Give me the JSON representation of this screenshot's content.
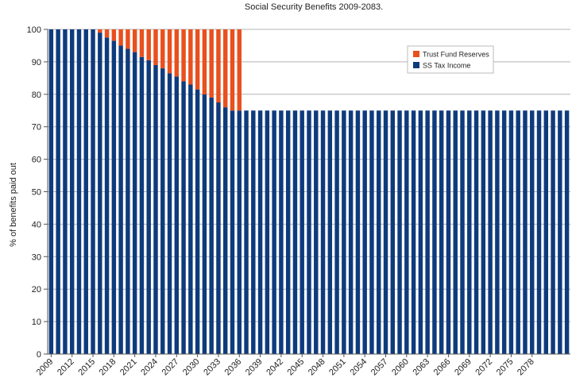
{
  "colors": {
    "ss_tax_income": "#0e3b7c",
    "trust_fund_reserves": "#e8501e",
    "grid": "#b3b3b3",
    "axis": "#555555",
    "background": "#ffffff"
  },
  "chart_data": {
    "type": "bar",
    "stacked": true,
    "title": "Social Security Benefits 2009-2083.",
    "xlabel": "",
    "ylabel": "% of benefits paid out",
    "ylim": [
      0,
      100
    ],
    "yticks": [
      0,
      10,
      20,
      30,
      40,
      50,
      60,
      70,
      80,
      90,
      100
    ],
    "grid": "horizontal",
    "legend_position": "top-right",
    "x_start": 2009,
    "x_end": 2083,
    "x_tick_labels": [
      "2009",
      "2012",
      "2015",
      "2018",
      "2021",
      "2024",
      "2027",
      "2030",
      "2033",
      "2036",
      "2039",
      "2042",
      "2045",
      "2048",
      "2051",
      "2054",
      "2057",
      "2060",
      "2063",
      "2066",
      "2069",
      "2072",
      "2075",
      "2078"
    ],
    "legend": [
      "Trust Fund Reserves",
      "SS Tax Income"
    ],
    "series": [
      {
        "name": "SS Tax Income",
        "color": "#0e3b7c",
        "values": [
          100,
          100,
          100,
          100,
          100,
          100,
          100,
          99,
          97.5,
          96.5,
          95,
          94,
          93,
          91.5,
          90.5,
          89,
          88,
          86.5,
          85.5,
          84,
          83,
          81.5,
          80,
          79,
          77.5,
          76,
          75,
          75,
          75,
          75,
          75,
          75,
          75,
          75,
          75,
          75,
          75,
          75,
          75,
          75,
          75,
          75,
          75,
          75,
          75,
          75,
          75,
          75,
          75,
          75,
          75,
          75,
          75,
          75,
          75,
          75,
          75,
          75,
          75,
          75,
          75,
          75,
          75,
          75,
          75,
          75,
          75,
          75,
          75,
          75,
          75,
          75,
          75,
          75,
          75
        ]
      },
      {
        "name": "Trust Fund Reserves",
        "color": "#e8501e",
        "values": [
          0,
          0,
          0,
          0,
          0,
          0,
          0,
          1,
          2.5,
          3.5,
          5,
          6,
          7,
          8.5,
          9.5,
          11,
          12,
          13.5,
          14.5,
          16,
          17,
          18.5,
          20,
          21,
          22.5,
          24,
          25,
          25,
          0,
          0,
          0,
          0,
          0,
          0,
          0,
          0,
          0,
          0,
          0,
          0,
          0,
          0,
          0,
          0,
          0,
          0,
          0,
          0,
          0,
          0,
          0,
          0,
          0,
          0,
          0,
          0,
          0,
          0,
          0,
          0,
          0,
          0,
          0,
          0,
          0,
          0,
          0,
          0,
          0,
          0,
          0,
          0,
          0,
          0,
          0
        ]
      }
    ]
  }
}
